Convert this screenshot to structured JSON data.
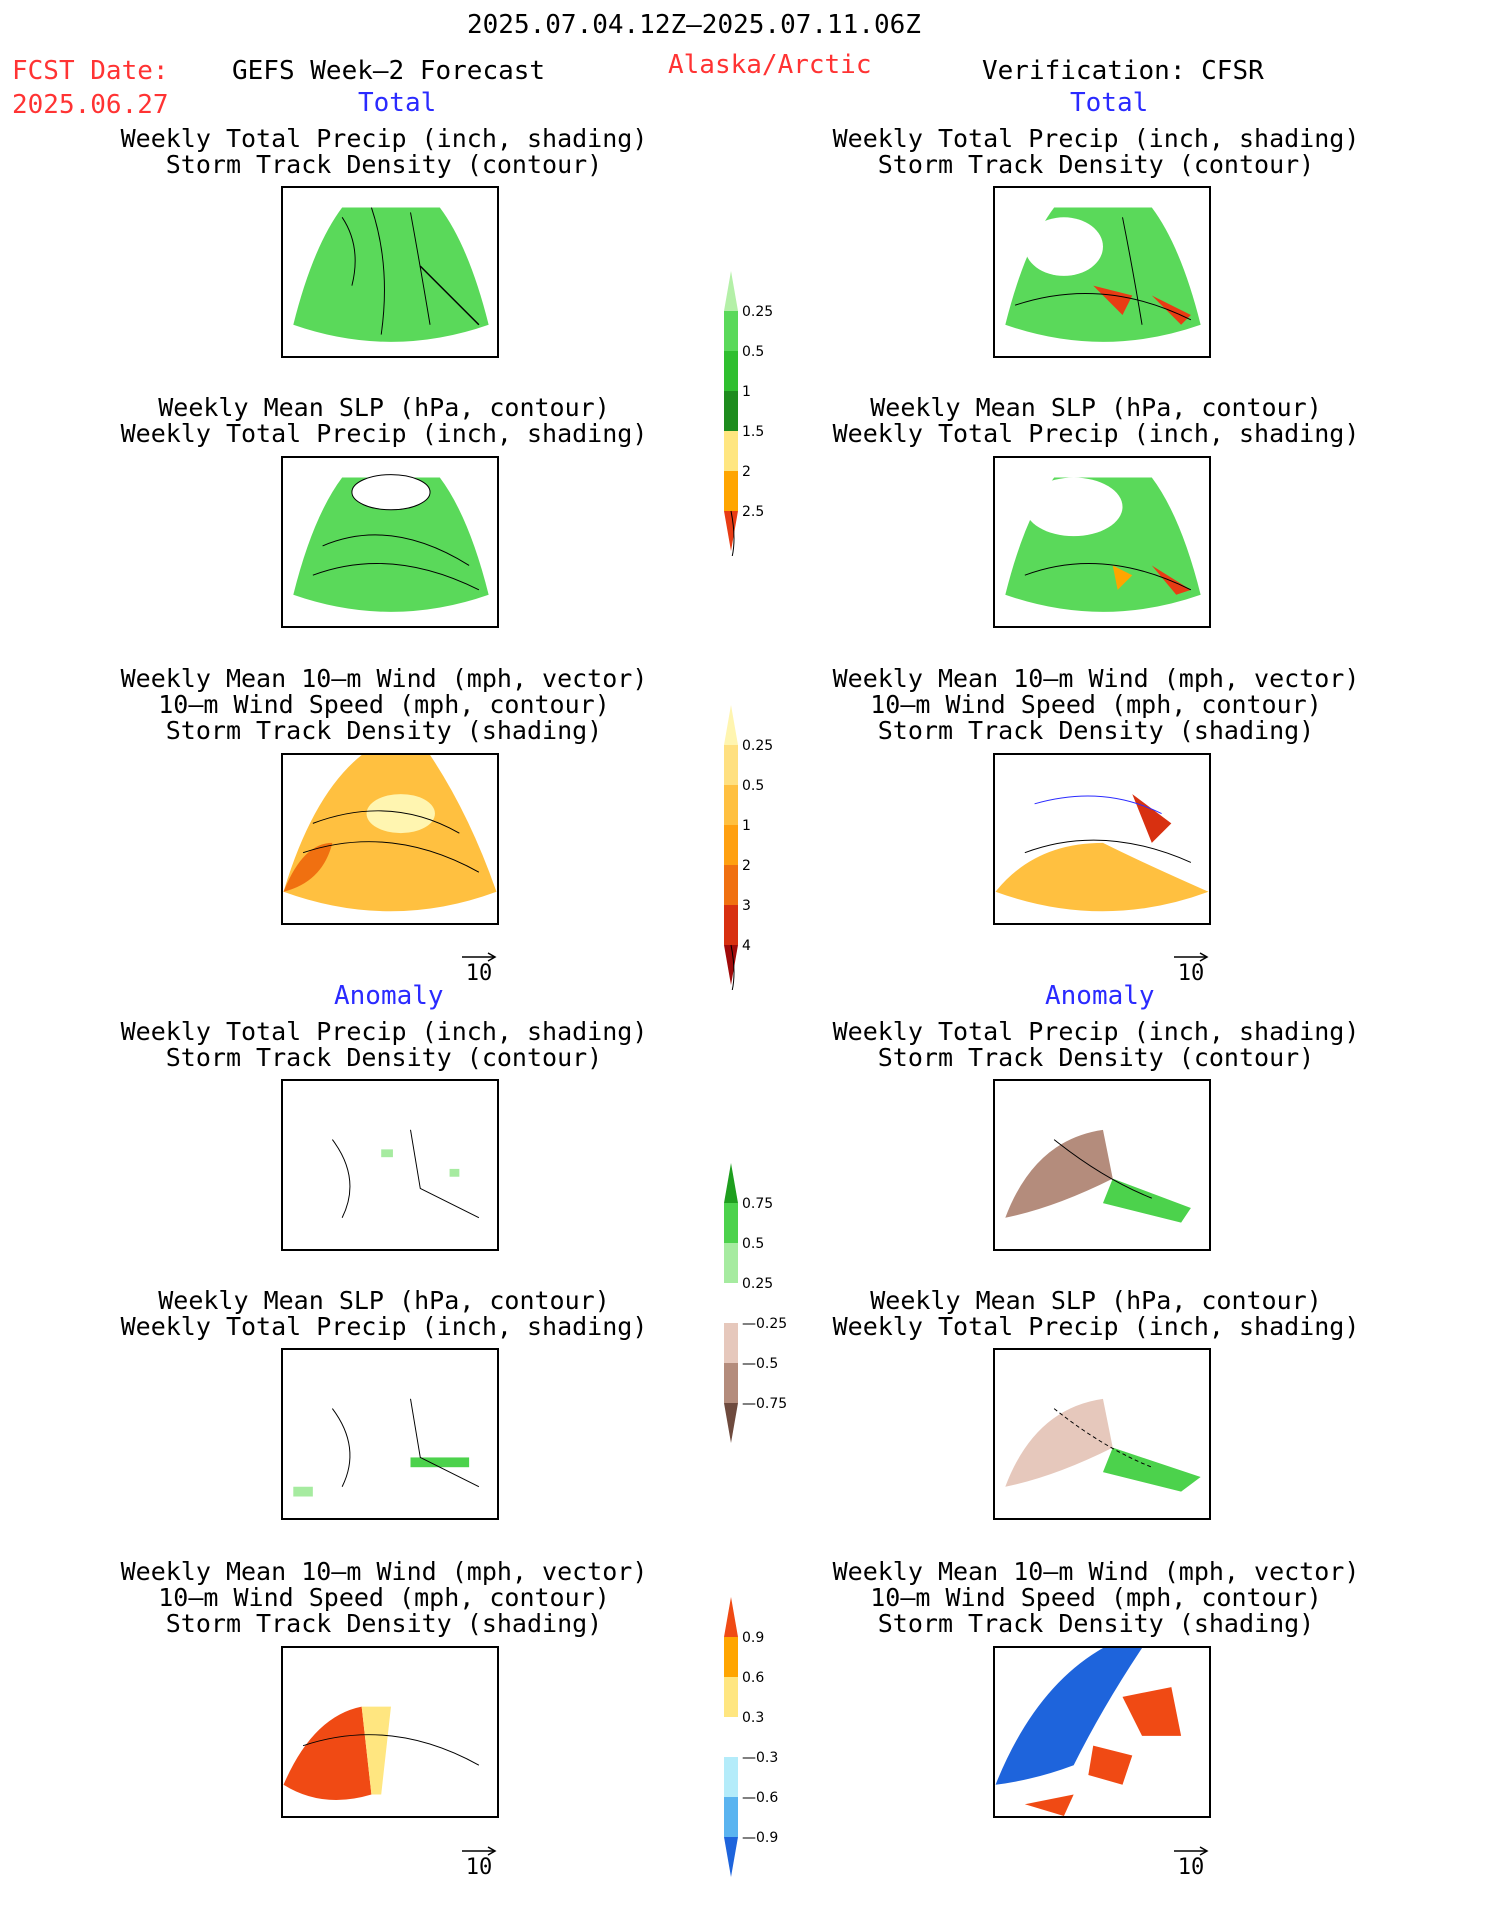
{
  "header": {
    "date_range": "2025.07.04.12Z—2025.07.11.06Z",
    "fcst_label": "FCST Date:",
    "fcst_date": "2025.06.27",
    "forecast_name": "GEFS Week—2 Forecast",
    "region": "Alaska/Arctic",
    "verification": "Verification: CFSR"
  },
  "sections": {
    "total_left": "Total",
    "total_right": "Total",
    "anomaly_left": "Anomaly",
    "anomaly_right": "Anomaly"
  },
  "titles": {
    "precip_storm": "Weekly Total Precip (inch, shading)\nStorm Track Density (contour)",
    "slp_precip": "Weekly Mean SLP (hPa, contour)\nWeekly Total Precip (inch, shading)",
    "wind": "Weekly Mean 10—m Wind (mph, vector)\n10—m Wind Speed (mph, contour)\nStorm Track Density (shading)"
  },
  "vector_ref": "10",
  "chart_data": [
    {
      "type": "heatmap",
      "name": "precip_total_colorbar",
      "levels": [
        "0.25",
        "0.5",
        "1",
        "1.5",
        "2",
        "2.5"
      ],
      "colors": [
        "#b4f0a8",
        "#5ad95a",
        "#2fbf2f",
        "#1e8c1e",
        "#ffe680",
        "#ffa500",
        "#e83c14"
      ]
    },
    {
      "type": "heatmap",
      "name": "storm_total_colorbar",
      "levels": [
        "0.25",
        "0.5",
        "1",
        "2",
        "3",
        "4"
      ],
      "colors": [
        "#fff5b0",
        "#ffe080",
        "#ffc040",
        "#ffa010",
        "#f07010",
        "#d83010",
        "#a00a0a"
      ]
    },
    {
      "type": "heatmap",
      "name": "precip_anomaly_colorbar",
      "levels": [
        "0.75",
        "0.5",
        "0.25",
        "—0.25",
        "—0.5",
        "—0.75"
      ],
      "colors": [
        "#1e9e1e",
        "#4cd24c",
        "#a6eba0",
        "#ffffff",
        "#e6c8bc",
        "#b48c7c",
        "#6e4a3e"
      ]
    },
    {
      "type": "heatmap",
      "name": "storm_anomaly_colorbar",
      "levels": [
        "0.9",
        "0.6",
        "0.3",
        "—0.3",
        "—0.6",
        "—0.9"
      ],
      "colors": [
        "#f04a14",
        "#ffa500",
        "#ffe680",
        "#ffffff",
        "#b4ecfa",
        "#5ab4f0",
        "#1e64dc"
      ]
    }
  ]
}
